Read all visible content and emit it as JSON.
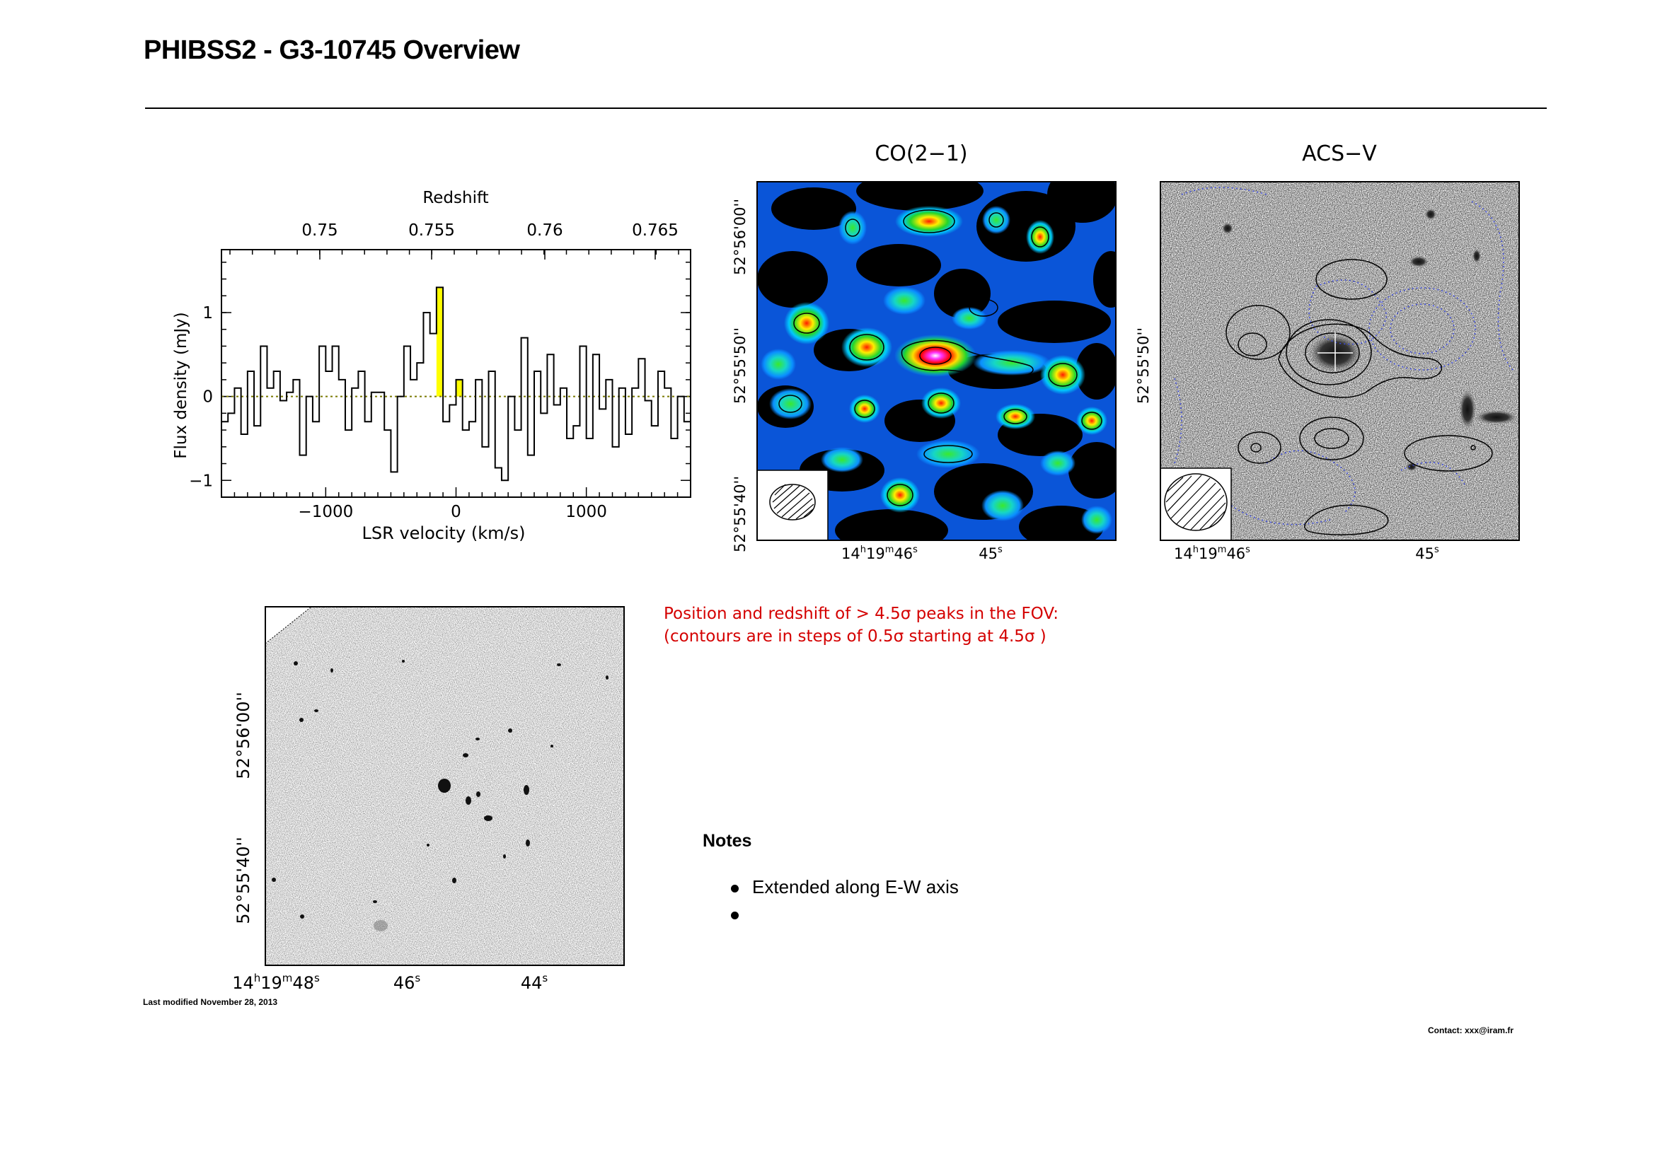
{
  "header": {
    "title": "PHIBSS2 - G3-10745 Overview"
  },
  "spectrum": {
    "top_axis_label": "Redshift",
    "top_ticks": [
      "0.75",
      "0.755",
      "0.76",
      "0.765"
    ],
    "x_ticks": [
      "−1000",
      "0",
      "1000"
    ],
    "y_ticks": [
      "−1",
      "0",
      "1"
    ],
    "xlabel": "LSR velocity (km/s)",
    "ylabel": "Flux density (mJy)"
  },
  "co_map": {
    "title": "CO(2−1)",
    "dec_ticks": [
      "52°56'00''",
      "52°55'50''",
      "52°55'40''"
    ],
    "ra_ticks": [
      "14h19m46s",
      "45s"
    ]
  },
  "acs_map": {
    "title": "ACS−V",
    "dec_ticks": [
      "52°55'50''"
    ],
    "ra_ticks": [
      "14h19m46s",
      "45s"
    ]
  },
  "wide_map": {
    "dec_ticks": [
      "52°56'00''",
      "52°55'40''"
    ],
    "ra_ticks": [
      "14h19m48s",
      "46s",
      "44s"
    ]
  },
  "fov_note": {
    "line1": "Position and redshift of > 4.5σ peaks in the FOV:",
    "line2": "(contours are in steps of 0.5σ starting at 4.5σ )"
  },
  "notes": {
    "title": "Notes",
    "items": [
      "Extended along E-W axis",
      ""
    ]
  },
  "footer": {
    "last_modified": "Last modified November 28, 2013",
    "contact": "Contact: xxx@iram.fr"
  },
  "chart_data": {
    "type": "line",
    "xlabel": "LSR velocity (km/s)",
    "ylabel": "Flux density (mJy)",
    "top_xlabel": "Redshift",
    "xlim": [
      -1800,
      1800
    ],
    "ylim": [
      -1.2,
      1.75
    ],
    "line_velocity_window": [
      -150,
      0
    ],
    "series": [
      {
        "x": [
          -1800,
          -1750,
          -1700,
          -1650,
          -1600,
          -1550,
          -1500,
          -1450,
          -1400,
          -1350,
          -1300,
          -1250,
          -1200,
          -1150,
          -1100,
          -1050,
          -1000,
          -950,
          -900,
          -850,
          -800,
          -750,
          -700,
          -650,
          -600,
          -550,
          -500,
          -450,
          -400,
          -350,
          -300,
          -250,
          -200,
          -150,
          -100,
          -50,
          0,
          50,
          100,
          150,
          200,
          250,
          300,
          350,
          400,
          450,
          500,
          550,
          600,
          650,
          700,
          750,
          800,
          850,
          900,
          950,
          1000,
          1050,
          1100,
          1150,
          1200,
          1250,
          1300,
          1350,
          1400,
          1450,
          1500,
          1550,
          1600,
          1650,
          1700,
          1750
        ],
        "values": [
          -0.3,
          -0.2,
          0.1,
          -0.45,
          0.3,
          -0.35,
          0.6,
          0.1,
          0.3,
          -0.05,
          0.05,
          0.2,
          -0.7,
          0.0,
          -0.3,
          0.6,
          0.3,
          0.6,
          0.2,
          -0.4,
          0.1,
          0.3,
          -0.3,
          0.05,
          0.05,
          -0.4,
          -0.9,
          0.0,
          0.6,
          0.2,
          0.4,
          1.0,
          0.75,
          1.3,
          -0.3,
          -0.1,
          0.2,
          -0.4,
          -0.3,
          0.2,
          -0.6,
          0.3,
          -0.85,
          -1.0,
          0.0,
          -0.4,
          0.7,
          -0.7,
          0.3,
          -0.2,
          0.5,
          -0.1,
          0.1,
          -0.5,
          -0.35,
          0.6,
          -0.5,
          0.5,
          -0.15,
          0.2,
          -0.6,
          0.1,
          -0.45,
          0.1,
          0.45,
          -0.05,
          -0.35,
          0.3,
          0.1,
          -0.5,
          0.0,
          -0.3
        ]
      }
    ]
  }
}
